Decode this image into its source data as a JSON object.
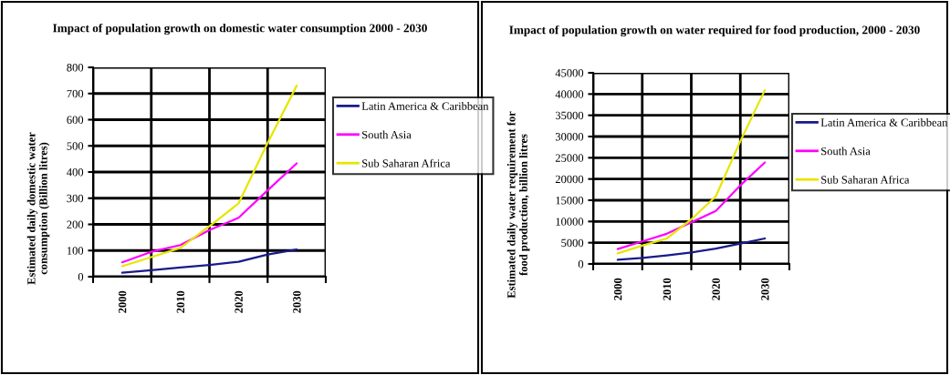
{
  "chart_data": [
    {
      "type": "line",
      "title": "Impact of population growth on domestic water consumption 2000 - 2030",
      "ylabel": "Estimated daily domestic water\nconsumption (Billion litres)",
      "x": [
        2000,
        2005,
        2010,
        2015,
        2020,
        2025,
        2030
      ],
      "xlim": [
        1995,
        2035
      ],
      "xticks": [
        {
          "value": 1995,
          "label": null
        },
        2000,
        {
          "value": 2005,
          "label": null
        },
        2010,
        {
          "value": 2015,
          "label": null
        },
        2020,
        {
          "value": 2025,
          "label": null
        },
        2030,
        {
          "value": 2035,
          "label": null
        }
      ],
      "ylim": [
        0,
        800
      ],
      "yticks": [
        0,
        100,
        200,
        300,
        400,
        500,
        600,
        700,
        800
      ],
      "grid": true,
      "legend": "right",
      "marker": "none",
      "line_style": "solid",
      "series": [
        {
          "name": "Latin America & Caribbean",
          "color": "#1a1a8c",
          "values": [
            15,
            25,
            35,
            45,
            57,
            85,
            104
          ]
        },
        {
          "name": "South Asia",
          "color": "#ff00ff",
          "values": [
            55,
            95,
            121,
            178,
            225,
            330,
            433
          ]
        },
        {
          "name": "Sub Saharan Africa",
          "color": "#e6e600",
          "values": [
            40,
            75,
            110,
            193,
            280,
            511,
            730
          ]
        }
      ]
    },
    {
      "type": "line",
      "title": "Impact of population growth on water required for food production, 2000 - 2030",
      "ylabel": "Estimated daily water requirement for\nfood production, billion litres",
      "x": [
        2000,
        2005,
        2010,
        2015,
        2020,
        2025,
        2030
      ],
      "xlim": [
        1995,
        2035
      ],
      "xticks": [
        {
          "value": 1995,
          "label": null
        },
        2000,
        {
          "value": 2005,
          "label": null
        },
        2010,
        {
          "value": 2015,
          "label": null
        },
        2020,
        {
          "value": 2025,
          "label": null
        },
        2030,
        {
          "value": 2035,
          "label": null
        }
      ],
      "ylim": [
        0,
        45000
      ],
      "yticks": [
        0,
        5000,
        10000,
        15000,
        20000,
        25000,
        30000,
        35000,
        40000,
        45000
      ],
      "grid": true,
      "legend": "right",
      "marker": "none",
      "line_style": "solid",
      "series": [
        {
          "name": "Latin America & Caribbean",
          "color": "#1a1a8c",
          "values": [
            1000,
            1400,
            2000,
            2700,
            3600,
            4800,
            6000
          ]
        },
        {
          "name": "South Asia",
          "color": "#ff00ff",
          "values": [
            3500,
            5300,
            7100,
            9800,
            12500,
            18500,
            23900
          ]
        },
        {
          "name": "Sub Saharan Africa",
          "color": "#e6e600",
          "values": [
            2500,
            4300,
            6000,
            10500,
            15900,
            28900,
            40900
          ]
        }
      ]
    }
  ]
}
